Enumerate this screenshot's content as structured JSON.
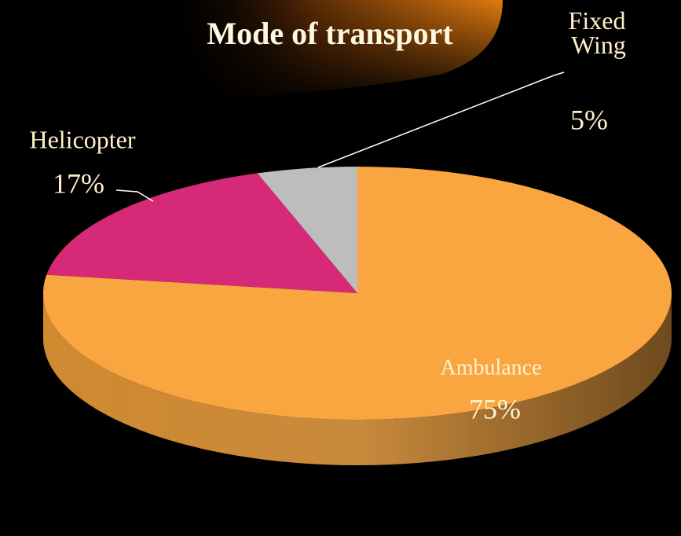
{
  "chart_data": {
    "type": "pie",
    "title": "Mode of transport",
    "categories": [
      "Ambulance",
      "Helicopter",
      "Fixed Wing"
    ],
    "values": [
      75,
      17,
      5
    ],
    "value_labels": [
      "75%",
      "17%",
      "5%"
    ],
    "colors": [
      "#f9a640",
      "#d62a78",
      "#bdbdbd"
    ]
  }
}
